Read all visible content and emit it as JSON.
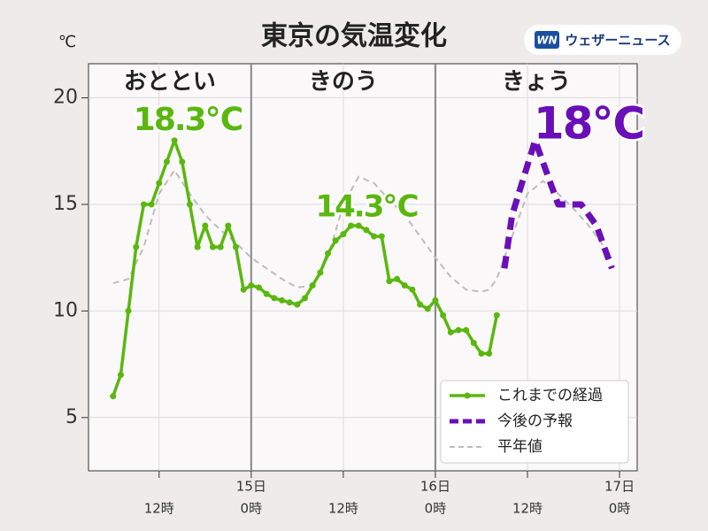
{
  "chart_data": {
    "type": "line",
    "title": "東京の気温変化",
    "brand": "ウェザーニュース",
    "brand_mark": "WN",
    "y_unit": "℃",
    "day_headers": [
      "おととい",
      "きのう",
      "きょう"
    ],
    "day_lines": [
      24,
      48
    ],
    "annotations": [
      "18.3℃",
      "14.3℃",
      "18℃"
    ],
    "xlim": [
      2.8,
      74.3
    ],
    "ylim": [
      2.5,
      21.6
    ],
    "yticks": [
      5,
      10,
      15,
      20
    ],
    "xticks": [
      {
        "value": 12,
        "label": "12時"
      },
      {
        "value": 24,
        "label": "0時"
      },
      {
        "value": 36,
        "label": "12時"
      },
      {
        "value": 48,
        "label": "0時"
      },
      {
        "value": 60,
        "label": "12時"
      },
      {
        "value": 72,
        "label": "0時"
      }
    ],
    "day_labels": [
      {
        "value": 24,
        "label": "15日"
      },
      {
        "value": 48,
        "label": "16日"
      },
      {
        "value": 72,
        "label": "17日"
      }
    ],
    "grid": true,
    "legend": "lower right",
    "series": [
      {
        "name": "これまでの経過",
        "color": "#5ab70f",
        "style": "solid-marker",
        "x": [
          6,
          7,
          8,
          9,
          10,
          11,
          12,
          13,
          14,
          15,
          16,
          17,
          18,
          19,
          20,
          21,
          22,
          23,
          24,
          25,
          26,
          27,
          28,
          29,
          30,
          31,
          32,
          33,
          34,
          35,
          36,
          37,
          38,
          39,
          40,
          41,
          42,
          43,
          44,
          45,
          46,
          47,
          48,
          49,
          50,
          51,
          52,
          53,
          54,
          55,
          56
        ],
        "values": [
          6,
          7,
          10,
          13,
          15,
          15,
          16,
          17,
          18,
          17,
          15,
          13,
          14,
          13,
          13,
          14,
          13,
          11,
          11.2,
          11.1,
          10.8,
          10.6,
          10.5,
          10.4,
          10.3,
          10.6,
          11.2,
          11.8,
          12.7,
          13.3,
          13.6,
          14,
          14,
          13.8,
          13.5,
          13.5,
          11.4,
          11.5,
          11.2,
          11,
          10.3,
          10.1,
          10.5,
          9.8,
          9,
          9.1,
          9.1,
          8.5,
          8,
          8,
          9.8
        ]
      },
      {
        "name": "今後の予報",
        "color": "#6a0fb8",
        "style": "dashed-thick",
        "x": [
          57,
          58,
          61,
          64,
          67,
          69,
          71
        ],
        "values": [
          12,
          14.5,
          18,
          15,
          15,
          14,
          12
        ]
      },
      {
        "name": "平年値",
        "color": "#bdbdbd",
        "style": "dashed-thin",
        "x": [
          6,
          8,
          10,
          12,
          14,
          16,
          18,
          20,
          22,
          24,
          26,
          28,
          30,
          32,
          34,
          36,
          38,
          40,
          42,
          44,
          46,
          48,
          50,
          52,
          54,
          55,
          56,
          58,
          60,
          62,
          64,
          66,
          68,
          70,
          71
        ],
        "values": [
          11.3,
          11.5,
          13,
          15.5,
          16.6,
          15.5,
          14.5,
          13.8,
          13.2,
          12.5,
          12,
          11.5,
          11.1,
          11.2,
          12.5,
          15,
          16.3,
          16,
          15.2,
          14.5,
          13.5,
          12.5,
          11.6,
          11,
          10.9,
          11,
          11.5,
          13.5,
          15.5,
          16.1,
          15.5,
          14.8,
          14,
          13,
          12.5
        ]
      }
    ]
  }
}
